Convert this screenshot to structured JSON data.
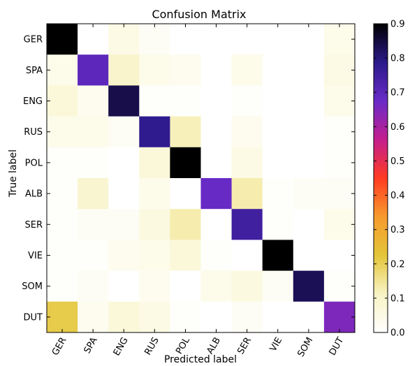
{
  "chart_data": {
    "type": "heatmap",
    "title": "Confusion Matrix",
    "xlabel": "Predicted label",
    "ylabel": "True label",
    "x_categories": [
      "GER",
      "SPA",
      "ENG",
      "RUS",
      "POL",
      "ALB",
      "SER",
      "VIE",
      "SOM",
      "DUT"
    ],
    "y_categories": [
      "GER",
      "SPA",
      "ENG",
      "RUS",
      "POL",
      "ALB",
      "SER",
      "VIE",
      "SOM",
      "DUT"
    ],
    "values": [
      [
        0.94,
        0.0,
        0.05,
        0.02,
        0.0,
        0.0,
        0.0,
        0.0,
        0.0,
        0.04
      ],
      [
        0.04,
        0.7,
        0.1,
        0.04,
        0.03,
        0.0,
        0.04,
        0.0,
        0.0,
        0.05
      ],
      [
        0.07,
        0.03,
        0.84,
        0.01,
        0.01,
        0.0,
        0.01,
        0.0,
        0.0,
        0.04
      ],
      [
        0.04,
        0.04,
        0.02,
        0.78,
        0.12,
        0.0,
        0.03,
        0.0,
        0.0,
        0.01
      ],
      [
        0.01,
        0.01,
        0.0,
        0.07,
        0.92,
        0.0,
        0.05,
        0.0,
        0.0,
        0.01
      ],
      [
        0.01,
        0.09,
        0.0,
        0.04,
        0.0,
        0.68,
        0.13,
        0.01,
        0.02,
        0.02
      ],
      [
        0.01,
        0.02,
        0.02,
        0.06,
        0.13,
        0.0,
        0.75,
        0.01,
        0.0,
        0.04
      ],
      [
        0.01,
        0.01,
        0.03,
        0.04,
        0.07,
        0.01,
        0.0,
        0.92,
        0.0,
        0.0
      ],
      [
        0.01,
        0.02,
        0.0,
        0.03,
        0.0,
        0.04,
        0.06,
        0.02,
        0.83,
        0.01
      ],
      [
        0.21,
        0.03,
        0.07,
        0.05,
        0.01,
        0.0,
        0.02,
        0.0,
        0.0,
        0.65
      ]
    ],
    "colorbar": {
      "min": 0.0,
      "max": 0.9,
      "ticks": [
        0.0,
        0.1,
        0.2,
        0.3,
        0.4,
        0.5,
        0.6,
        0.7,
        0.8,
        0.9
      ],
      "tick_labels": [
        "0.0",
        "0.1",
        "0.2",
        "0.3",
        "0.4",
        "0.5",
        "0.6",
        "0.7",
        "0.8",
        "0.9"
      ]
    },
    "colormap_stops": [
      "#ffffff",
      "#f8f3c4",
      "#e4c537",
      "#f79a2d",
      "#ff3b22",
      "#c41e8e",
      "#6a2bc8",
      "#2b1a8a",
      "#000000"
    ],
    "grid": false
  }
}
